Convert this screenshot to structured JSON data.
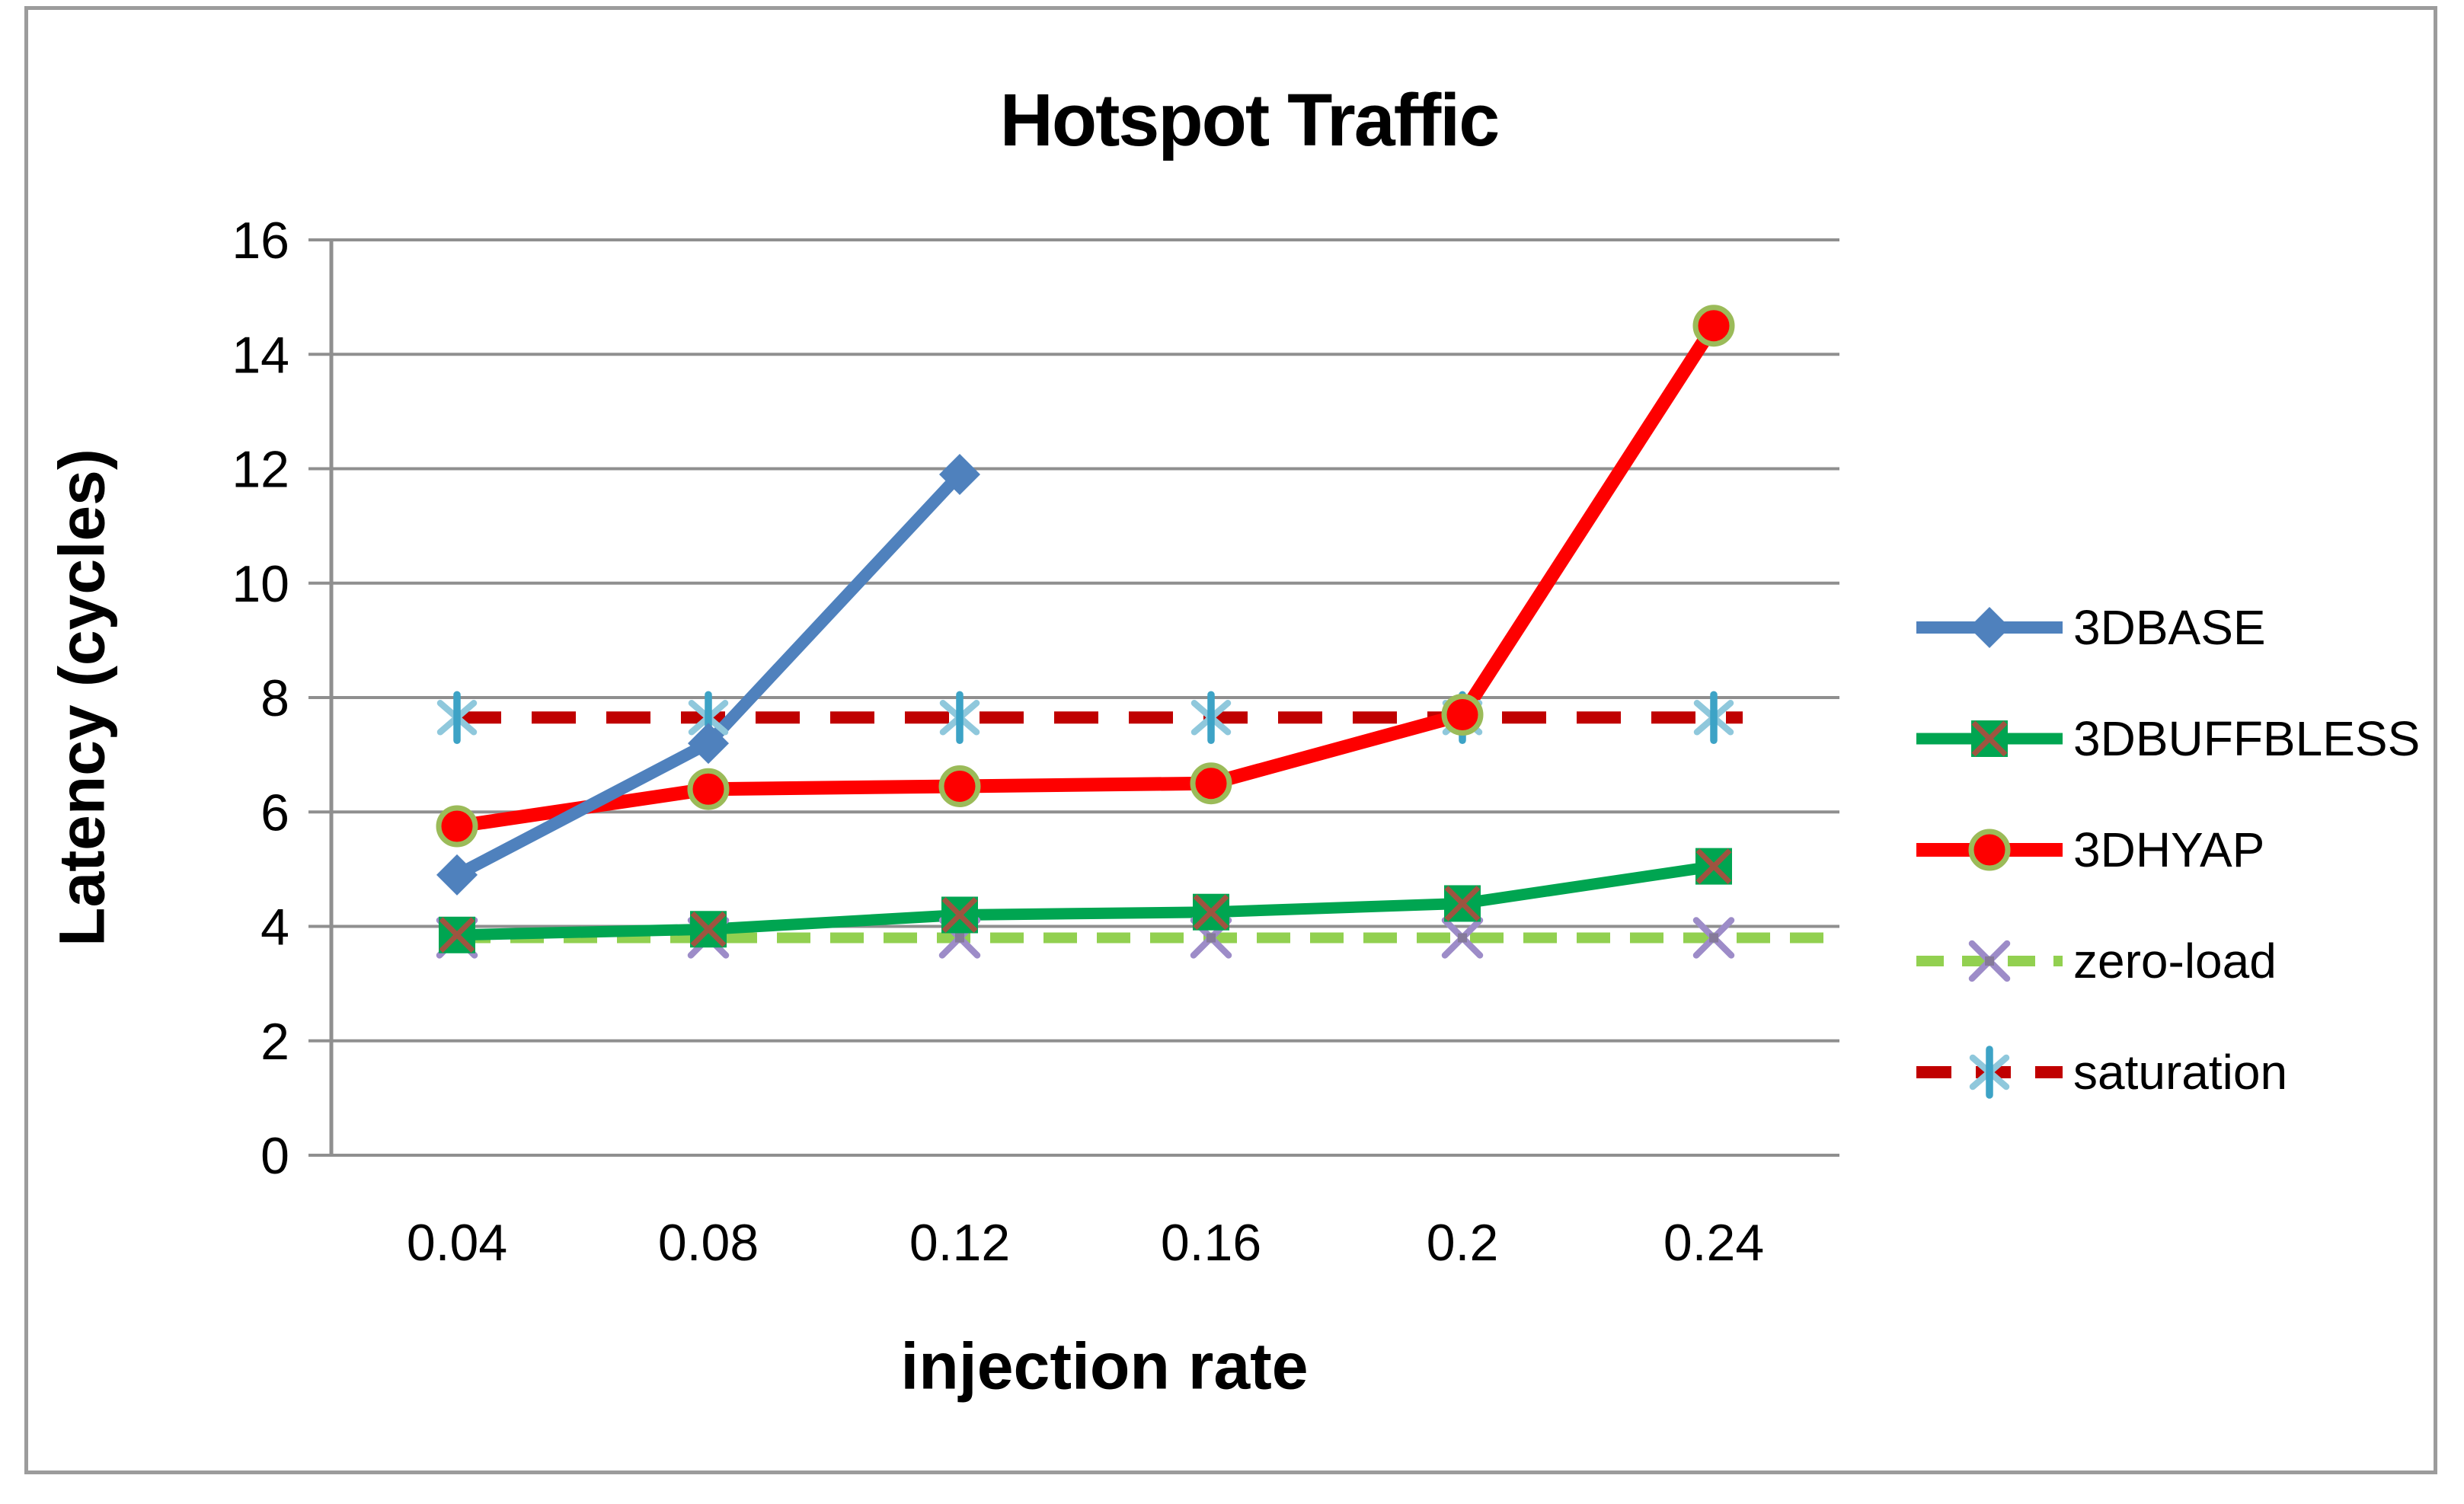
{
  "chart_data": {
    "type": "line",
    "title": "Hotspot Traffic",
    "xlabel": "injection rate",
    "ylabel": "Latency (cycles)",
    "x_categories": [
      "0.04",
      "0.08",
      "0.12",
      "0.16",
      "0.2",
      "0.24"
    ],
    "ylim": [
      0,
      16
    ],
    "y_ticks": [
      16,
      14,
      12,
      10,
      8,
      6,
      4,
      2,
      0
    ],
    "grid": "horizontal",
    "legend_position": "right",
    "series": [
      {
        "name": "3DBASE",
        "values": [
          4.9,
          7.2,
          11.9,
          null,
          null,
          null
        ],
        "color": "#4f81bd",
        "line_style": "solid",
        "marker": "diamond",
        "marker_detail": "#4f81bd"
      },
      {
        "name": "3DBUFFBLESS",
        "values": [
          3.85,
          3.95,
          4.2,
          4.25,
          4.4,
          5.05
        ],
        "color": "#00a551",
        "line_style": "solid",
        "marker": "square-x",
        "marker_detail": "#9e5440"
      },
      {
        "name": "3DHYAP",
        "values": [
          5.75,
          6.4,
          6.45,
          6.5,
          7.7,
          14.5
        ],
        "color": "#fe0000",
        "line_style": "solid",
        "marker": "circle",
        "marker_detail": "#9bbb59"
      },
      {
        "name": "zero-load",
        "values": [
          3.8,
          3.8,
          3.8,
          3.8,
          3.8,
          3.8
        ],
        "color": "#92d050",
        "line_style": "dashed",
        "marker": "x-cross",
        "marker_detail": "#9d8cc8",
        "extend_to_right_edge": true
      },
      {
        "name": "saturation",
        "values": [
          7.65,
          7.65,
          7.65,
          7.65,
          7.65,
          7.65
        ],
        "color": "#c00000",
        "line_style": "dashed",
        "marker": "asterisk",
        "marker_detail": "#3da3c6"
      }
    ]
  },
  "colors": {
    "gridline": "#8f8f8f",
    "axis": "#8f8f8f",
    "text": "#000000",
    "border": "#9c9c9c",
    "background": "#ffffff"
  }
}
